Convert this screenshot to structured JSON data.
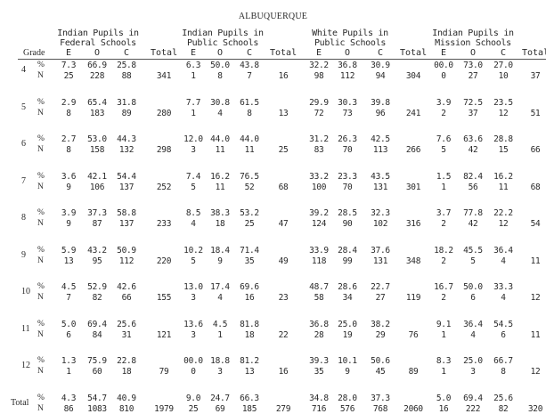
{
  "title": "ALBUQUERQUE",
  "header": {
    "grade": "Grade",
    "groups": [
      {
        "line1": "Indian Pupils in",
        "line2": "Federal Schools"
      },
      {
        "line1": "Indian Pupils in",
        "line2": "Public Schools"
      },
      {
        "line1": "White Pupils in",
        "line2": "Public Schools"
      },
      {
        "line1": "Indian Pupils in",
        "line2": "Mission Schools"
      }
    ],
    "cols": [
      "E",
      "O",
      "C",
      "Total"
    ]
  },
  "row_labels": {
    "pct": "%",
    "n": "N"
  },
  "rows": [
    {
      "grade": "4",
      "groups": [
        {
          "pct": [
            "7.3",
            "66.9",
            "25.8"
          ],
          "n": [
            "25",
            "228",
            "88"
          ],
          "total": "341"
        },
        {
          "pct": [
            "6.3",
            "50.0",
            "43.8"
          ],
          "n": [
            "1",
            "8",
            "7"
          ],
          "total": "16"
        },
        {
          "pct": [
            "32.2",
            "36.8",
            "30.9"
          ],
          "n": [
            "98",
            "112",
            "94"
          ],
          "total": "304"
        },
        {
          "pct": [
            "00.0",
            "73.0",
            "27.0"
          ],
          "n": [
            "0",
            "27",
            "10"
          ],
          "total": "37"
        }
      ]
    },
    {
      "grade": "5",
      "groups": [
        {
          "pct": [
            "2.9",
            "65.4",
            "31.8"
          ],
          "n": [
            "8",
            "183",
            "89"
          ],
          "total": "280"
        },
        {
          "pct": [
            "7.7",
            "30.8",
            "61.5"
          ],
          "n": [
            "1",
            "4",
            "8"
          ],
          "total": "13"
        },
        {
          "pct": [
            "29.9",
            "30.3",
            "39.8"
          ],
          "n": [
            "72",
            "73",
            "96"
          ],
          "total": "241"
        },
        {
          "pct": [
            "3.9",
            "72.5",
            "23.5"
          ],
          "n": [
            "2",
            "37",
            "12"
          ],
          "total": "51"
        }
      ]
    },
    {
      "grade": "6",
      "groups": [
        {
          "pct": [
            "2.7",
            "53.0",
            "44.3"
          ],
          "n": [
            "8",
            "158",
            "132"
          ],
          "total": "298"
        },
        {
          "pct": [
            "12.0",
            "44.0",
            "44.0"
          ],
          "n": [
            "3",
            "11",
            "11"
          ],
          "total": "25"
        },
        {
          "pct": [
            "31.2",
            "26.3",
            "42.5"
          ],
          "n": [
            "83",
            "70",
            "113"
          ],
          "total": "266"
        },
        {
          "pct": [
            "7.6",
            "63.6",
            "28.8"
          ],
          "n": [
            "5",
            "42",
            "15"
          ],
          "total": "66"
        }
      ]
    },
    {
      "grade": "7",
      "groups": [
        {
          "pct": [
            "3.6",
            "42.1",
            "54.4"
          ],
          "n": [
            "9",
            "106",
            "137"
          ],
          "total": "252"
        },
        {
          "pct": [
            "7.4",
            "16.2",
            "76.5"
          ],
          "n": [
            "5",
            "11",
            "52"
          ],
          "total": "68"
        },
        {
          "pct": [
            "33.2",
            "23.3",
            "43.5"
          ],
          "n": [
            "100",
            "70",
            "131"
          ],
          "total": "301"
        },
        {
          "pct": [
            "1.5",
            "82.4",
            "16.2"
          ],
          "n": [
            "1",
            "56",
            "11"
          ],
          "total": "68"
        }
      ]
    },
    {
      "grade": "8",
      "groups": [
        {
          "pct": [
            "3.9",
            "37.3",
            "58.8"
          ],
          "n": [
            "9",
            "87",
            "137"
          ],
          "total": "233"
        },
        {
          "pct": [
            "8.5",
            "38.3",
            "53.2"
          ],
          "n": [
            "4",
            "18",
            "25"
          ],
          "total": "47"
        },
        {
          "pct": [
            "39.2",
            "28.5",
            "32.3"
          ],
          "n": [
            "124",
            "90",
            "102"
          ],
          "total": "316"
        },
        {
          "pct": [
            "3.7",
            "77.8",
            "22.2"
          ],
          "n": [
            "2",
            "42",
            "12"
          ],
          "total": "54"
        }
      ]
    },
    {
      "grade": "9",
      "groups": [
        {
          "pct": [
            "5.9",
            "43.2",
            "50.9"
          ],
          "n": [
            "13",
            "95",
            "112"
          ],
          "total": "220"
        },
        {
          "pct": [
            "10.2",
            "18.4",
            "71.4"
          ],
          "n": [
            "5",
            "9",
            "35"
          ],
          "total": "49"
        },
        {
          "pct": [
            "33.9",
            "28.4",
            "37.6"
          ],
          "n": [
            "118",
            "99",
            "131"
          ],
          "total": "348"
        },
        {
          "pct": [
            "18.2",
            "45.5",
            "36.4"
          ],
          "n": [
            "2",
            "5",
            "4"
          ],
          "total": "11"
        }
      ]
    },
    {
      "grade": "10",
      "groups": [
        {
          "pct": [
            "4.5",
            "52.9",
            "42.6"
          ],
          "n": [
            "7",
            "82",
            "66"
          ],
          "total": "155"
        },
        {
          "pct": [
            "13.0",
            "17.4",
            "69.6"
          ],
          "n": [
            "3",
            "4",
            "16"
          ],
          "total": "23"
        },
        {
          "pct": [
            "48.7",
            "28.6",
            "22.7"
          ],
          "n": [
            "58",
            "34",
            "27"
          ],
          "total": "119"
        },
        {
          "pct": [
            "16.7",
            "50.0",
            "33.3"
          ],
          "n": [
            "2",
            "6",
            "4"
          ],
          "total": "12"
        }
      ]
    },
    {
      "grade": "11",
      "groups": [
        {
          "pct": [
            "5.0",
            "69.4",
            "25.6"
          ],
          "n": [
            "6",
            "84",
            "31"
          ],
          "total": "121"
        },
        {
          "pct": [
            "13.6",
            "4.5",
            "81.8"
          ],
          "n": [
            "3",
            "1",
            "18"
          ],
          "total": "22"
        },
        {
          "pct": [
            "36.8",
            "25.0",
            "38.2"
          ],
          "n": [
            "28",
            "19",
            "29"
          ],
          "total": "76"
        },
        {
          "pct": [
            "9.1",
            "36.4",
            "54.5"
          ],
          "n": [
            "1",
            "4",
            "6"
          ],
          "total": "11"
        }
      ]
    },
    {
      "grade": "12",
      "groups": [
        {
          "pct": [
            "1.3",
            "75.9",
            "22.8"
          ],
          "n": [
            "1",
            "60",
            "18"
          ],
          "total": "79"
        },
        {
          "pct": [
            "00.0",
            "18.8",
            "81.2"
          ],
          "n": [
            "0",
            "3",
            "13"
          ],
          "total": "16"
        },
        {
          "pct": [
            "39.3",
            "10.1",
            "50.6"
          ],
          "n": [
            "35",
            "9",
            "45"
          ],
          "total": "89"
        },
        {
          "pct": [
            "8.3",
            "25.0",
            "66.7"
          ],
          "n": [
            "1",
            "3",
            "8"
          ],
          "total": "12"
        }
      ]
    },
    {
      "grade": "Total",
      "groups": [
        {
          "pct": [
            "4.3",
            "54.7",
            "40.9"
          ],
          "n": [
            "86",
            "1083",
            "810"
          ],
          "total": "1979"
        },
        {
          "pct": [
            "9.0",
            "24.7",
            "66.3"
          ],
          "n": [
            "25",
            "69",
            "185"
          ],
          "total": "279"
        },
        {
          "pct": [
            "34.8",
            "28.0",
            "37.3"
          ],
          "n": [
            "716",
            "576",
            "768"
          ],
          "total": "2060"
        },
        {
          "pct": [
            "5.0",
            "69.4",
            "25.6"
          ],
          "n": [
            "16",
            "222",
            "82"
          ],
          "total": "320"
        }
      ]
    }
  ]
}
